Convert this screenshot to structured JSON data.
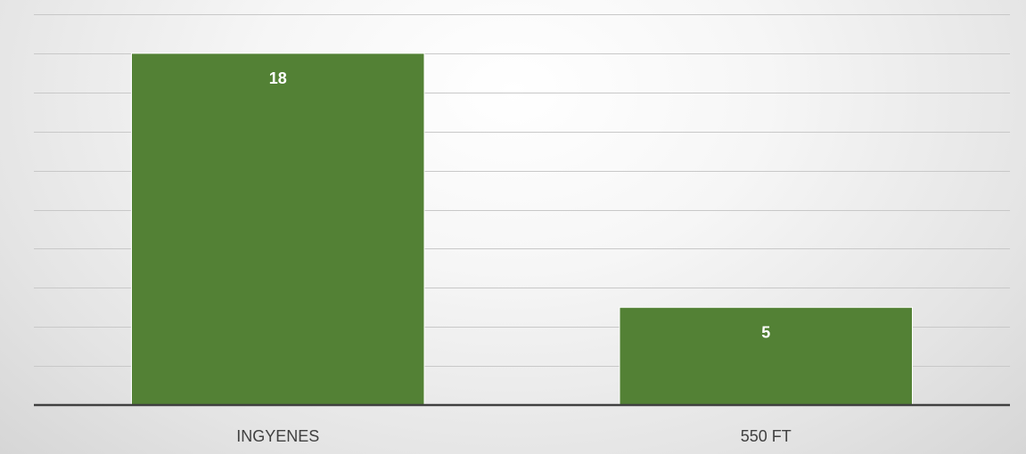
{
  "chart_data": {
    "type": "bar",
    "categories": [
      "INGYENES",
      "550 FT"
    ],
    "values": [
      18,
      5
    ],
    "data_labels": [
      "18",
      "5"
    ],
    "ylim": [
      0,
      20
    ],
    "grid": true,
    "gridline_step": 2,
    "y_tick_labels_shown": false,
    "legend": "none"
  },
  "colors": {
    "bar": "#538135",
    "axis": "#404040",
    "grid": "#c8c8c8",
    "label": "#ffffff",
    "tick_text": "#404040"
  }
}
